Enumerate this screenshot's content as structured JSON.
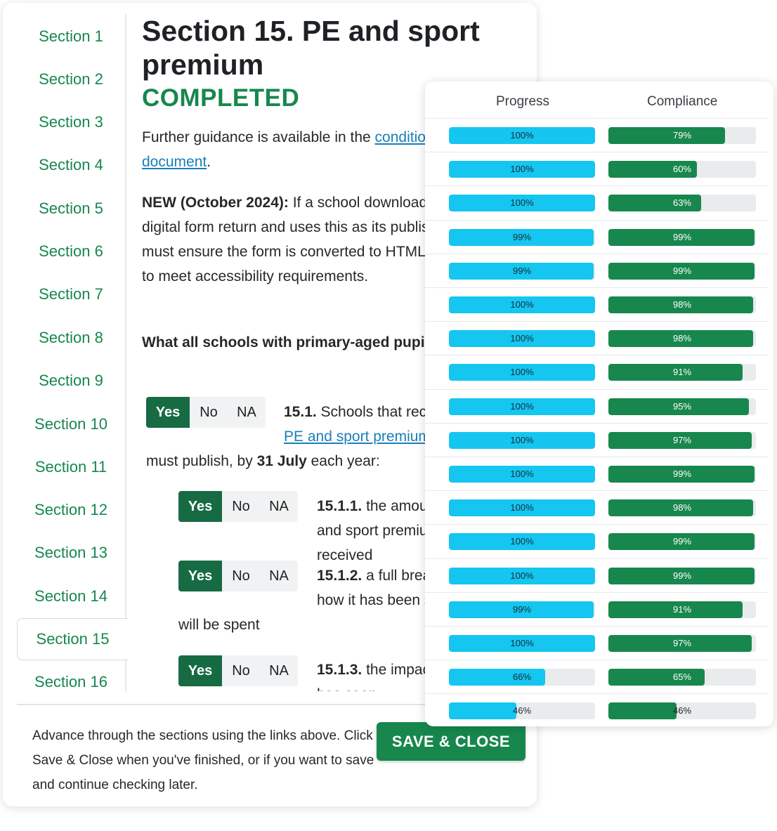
{
  "sidebar": {
    "items": [
      {
        "label": "Section 1"
      },
      {
        "label": "Section 2"
      },
      {
        "label": "Section 3"
      },
      {
        "label": "Section 4"
      },
      {
        "label": "Section 5"
      },
      {
        "label": "Section 6"
      },
      {
        "label": "Section 7"
      },
      {
        "label": "Section 8"
      },
      {
        "label": "Section 9"
      },
      {
        "label": "Section 10"
      },
      {
        "label": "Section 11"
      },
      {
        "label": "Section 12"
      },
      {
        "label": "Section 13"
      },
      {
        "label": "Section 14"
      },
      {
        "label": "Section 15"
      },
      {
        "label": "Section 16"
      }
    ],
    "active_index": 14
  },
  "main": {
    "title": "Section 15. PE and sport premium",
    "status": "COMPLETED",
    "guidance_prefix": "Further guidance is available in the ",
    "guidance_link": "conditions of grant document",
    "guidance_suffix": ".",
    "new_label": "NEW (October 2024):",
    "new_text": " If a school downloads a PDF of its digital form return and uses this as its published report, it must ensure the form is converted to HTML format. This is to meet accessibility requirements.",
    "subheading": "What all schools with primary-aged pupils must publish",
    "questions": [
      {
        "num": "15.1.",
        "text_a": " Schools that receive ",
        "link": "PE and sport premium funding",
        "text_b": "must publish, by ",
        "bold": "31 July",
        "text_c": " each year:",
        "answer": "Yes"
      },
      {
        "num": "15.1.1.",
        "text": " the amount of PE and sport premium received",
        "answer": "Yes"
      },
      {
        "num": "15.1.2.",
        "text": " a full breakdown of how it has been spent or",
        "text_b": "will be spent",
        "answer": "Yes"
      },
      {
        "num": "15.1.3.",
        "text": " the impact the school has seen",
        "answer": "Yes"
      }
    ],
    "options": [
      "Yes",
      "No",
      "NA"
    ]
  },
  "footer": {
    "text": "Advance through the sections using the links above. Click Save & Close when you've finished, or if you want to save and continue checking later.",
    "save_label": "SAVE & CLOSE"
  },
  "panel": {
    "progress_header": "Progress",
    "compliance_header": "Compliance",
    "progress_color": "#14c6f0",
    "compliance_color": "#17874d",
    "rows": [
      {
        "progress": 100,
        "progress_label": "100%",
        "compliance": 79,
        "compliance_label": "79%"
      },
      {
        "progress": 100,
        "progress_label": "100%",
        "compliance": 60,
        "compliance_label": "60%"
      },
      {
        "progress": 100,
        "progress_label": "100%",
        "compliance": 63,
        "compliance_label": "63%"
      },
      {
        "progress": 99,
        "progress_label": "99%",
        "compliance": 99,
        "compliance_label": "99%"
      },
      {
        "progress": 99,
        "progress_label": "99%",
        "compliance": 99,
        "compliance_label": "99%"
      },
      {
        "progress": 100,
        "progress_label": "100%",
        "compliance": 98,
        "compliance_label": "98%"
      },
      {
        "progress": 100,
        "progress_label": "100%",
        "compliance": 98,
        "compliance_label": "98%"
      },
      {
        "progress": 100,
        "progress_label": "100%",
        "compliance": 91,
        "compliance_label": "91%"
      },
      {
        "progress": 100,
        "progress_label": "100%",
        "compliance": 95,
        "compliance_label": "95%"
      },
      {
        "progress": 100,
        "progress_label": "100%",
        "compliance": 97,
        "compliance_label": "97%"
      },
      {
        "progress": 100,
        "progress_label": "100%",
        "compliance": 99,
        "compliance_label": "99%"
      },
      {
        "progress": 100,
        "progress_label": "100%",
        "compliance": 98,
        "compliance_label": "98%"
      },
      {
        "progress": 100,
        "progress_label": "100%",
        "compliance": 99,
        "compliance_label": "99%"
      },
      {
        "progress": 100,
        "progress_label": "100%",
        "compliance": 99,
        "compliance_label": "99%"
      },
      {
        "progress": 99,
        "progress_label": "99%",
        "compliance": 91,
        "compliance_label": "91%"
      },
      {
        "progress": 100,
        "progress_label": "100%",
        "compliance": 97,
        "compliance_label": "97%"
      },
      {
        "progress": 66,
        "progress_label": "66%",
        "compliance": 65,
        "compliance_label": "65%"
      },
      {
        "progress": 46,
        "progress_label": "46%",
        "compliance": 46,
        "compliance_label": "46%"
      }
    ]
  }
}
